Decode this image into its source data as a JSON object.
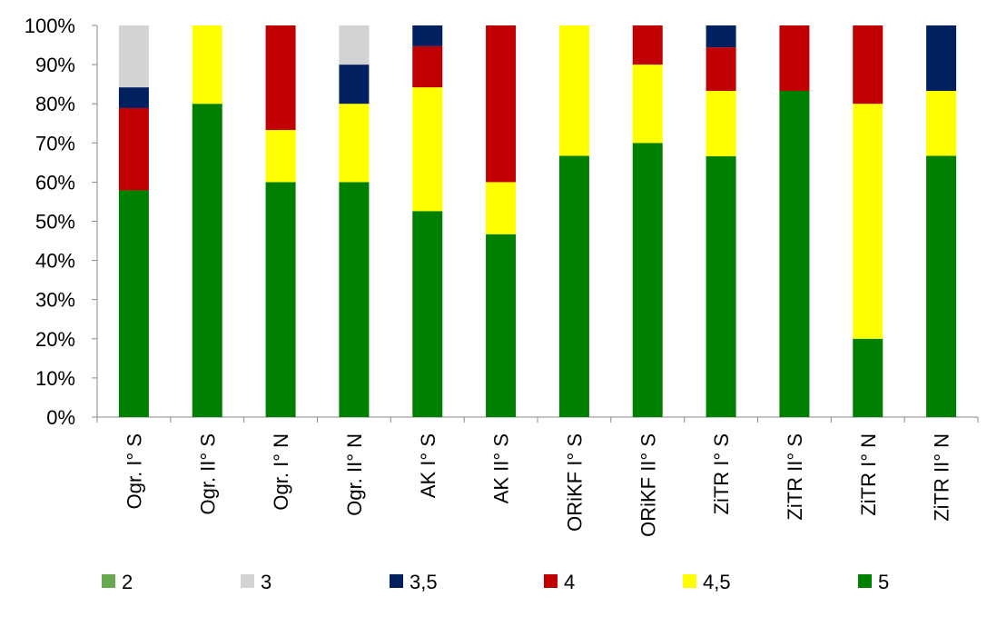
{
  "chart_data": {
    "type": "bar",
    "stacked": true,
    "percent_stacked": true,
    "categories": [
      "Ogr. I° S",
      "Ogr. II° S",
      "Ogr. I° N",
      "Ogr. II° N",
      "AK I° S",
      "AK II° S",
      "ORiKF I° S",
      "ORiKF II° S",
      "ZiTR I° S",
      "ZiTR II° S",
      "ZiTR I° N",
      "ZiTR II° N"
    ],
    "series": [
      {
        "name": "2",
        "color": "#6aa84f",
        "values": [
          0,
          0,
          0,
          0,
          0,
          0,
          0,
          0,
          0,
          0,
          0,
          0
        ]
      },
      {
        "name": "3",
        "color": "#d3d3d3",
        "values": [
          15.8,
          0,
          0,
          10,
          0,
          0,
          0,
          0,
          0,
          0,
          0,
          0
        ]
      },
      {
        "name": "3,5",
        "color": "#002060",
        "values": [
          5.3,
          0,
          0,
          10,
          5.3,
          0,
          0,
          0,
          5.6,
          0,
          0,
          16.7
        ]
      },
      {
        "name": "4",
        "color": "#c00000",
        "values": [
          21.0,
          0,
          26.7,
          0,
          10.5,
          40,
          0,
          10,
          11.1,
          16.7,
          20,
          0
        ]
      },
      {
        "name": "4,5",
        "color": "#ffff00",
        "values": [
          0,
          20,
          13.3,
          20,
          31.6,
          13.3,
          33.3,
          20,
          16.7,
          0,
          60,
          16.6
        ]
      },
      {
        "name": "5",
        "color": "#008000",
        "values": [
          57.9,
          80,
          60,
          60,
          52.6,
          46.7,
          66.7,
          70,
          66.6,
          83.3,
          20,
          66.7
        ]
      }
    ],
    "stack_order_bottom_to_top": [
      "5",
      "4,5",
      "4",
      "3,5",
      "3",
      "2"
    ],
    "y_ticks": [
      "0%",
      "10%",
      "20%",
      "30%",
      "40%",
      "50%",
      "60%",
      "70%",
      "80%",
      "90%",
      "100%"
    ],
    "ylim": [
      0,
      100
    ],
    "grid": false,
    "legend_position": "bottom",
    "title": "",
    "xlabel": "",
    "ylabel": ""
  }
}
